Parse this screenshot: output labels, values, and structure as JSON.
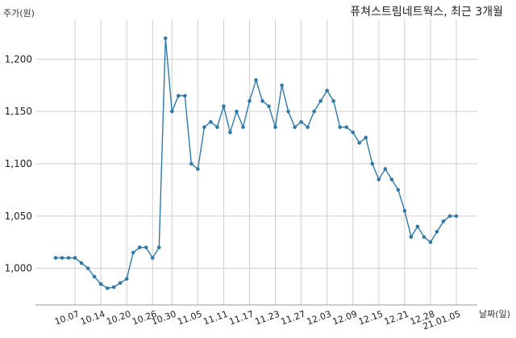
{
  "chart_data": {
    "type": "line",
    "title": "퓨쳐스트림네트웍스, 최근 3개월",
    "ylabel": "주가(원)",
    "xlabel": "날짜(일)",
    "ylim": [
      965,
      1235
    ],
    "yticks": [
      "1,000",
      "1,050",
      "1,100",
      "1,150",
      "1,200"
    ],
    "ytick_values": [
      1000,
      1050,
      1100,
      1150,
      1200
    ],
    "xticks": [
      "10.07",
      "10.14",
      "10.20",
      "10.26",
      "10.30",
      "11.05",
      "11.11",
      "11.17",
      "11.23",
      "11.27",
      "12.03",
      "12.09",
      "12.15",
      "12.21",
      "12.28",
      "21.01.05"
    ],
    "xtick_index": [
      3,
      7,
      11,
      15,
      18,
      22,
      26,
      30,
      34,
      38,
      42,
      46,
      50,
      54,
      58,
      62
    ],
    "grid": true,
    "color": "#2f7aa8",
    "series": [
      {
        "values": [
          1010,
          1010,
          1010,
          1010,
          1005,
          1000,
          992,
          985,
          981,
          982,
          986,
          990,
          1015,
          1020,
          1020,
          1010,
          1020,
          1220,
          1150,
          1165,
          1165,
          1100,
          1095,
          1135,
          1140,
          1135,
          1155,
          1130,
          1150,
          1135,
          1160,
          1180,
          1160,
          1155,
          1135,
          1175,
          1150,
          1135,
          1140,
          1135,
          1150,
          1160,
          1170,
          1160,
          1135,
          1135,
          1130,
          1120,
          1125,
          1100,
          1085,
          1095,
          1085,
          1075,
          1055,
          1030,
          1040,
          1030,
          1025,
          1035,
          1045,
          1050,
          1050
        ]
      }
    ]
  }
}
